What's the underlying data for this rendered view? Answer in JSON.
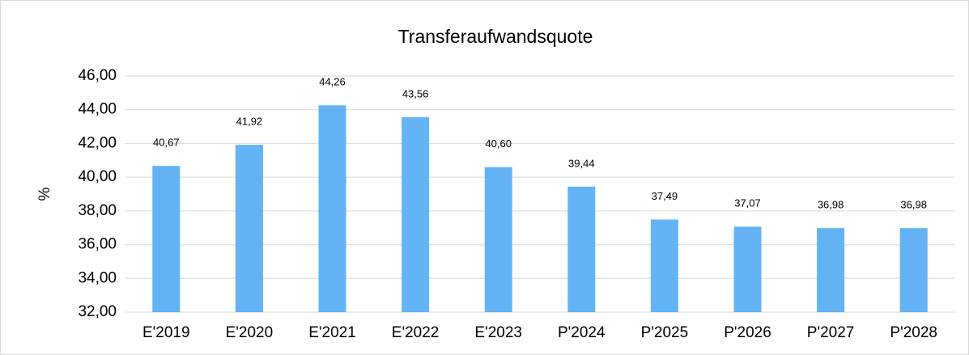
{
  "chart_data": {
    "type": "bar",
    "title": "Transferaufwandsquote",
    "y_label": "%",
    "categories": [
      "E'2019",
      "E'2020",
      "E'2021",
      "E'2022",
      "E'2023",
      "P'2024",
      "P'2025",
      "P'2026",
      "P'2027",
      "P'2028"
    ],
    "values": [
      40.67,
      41.92,
      44.26,
      43.56,
      40.6,
      39.44,
      37.49,
      37.07,
      36.98,
      36.98
    ],
    "value_labels": [
      "40,67",
      "41,92",
      "44,26",
      "43,56",
      "40,60",
      "39,44",
      "37,49",
      "37,07",
      "36,98",
      "36,98"
    ],
    "color": "#63b3f5",
    "ylim": [
      32,
      46
    ],
    "yticks": [
      {
        "value": 32,
        "label": "32,00"
      },
      {
        "value": 34,
        "label": "34,00"
      },
      {
        "value": 36,
        "label": "36,00"
      },
      {
        "value": 38,
        "label": "38,00"
      },
      {
        "value": 40,
        "label": "40,00"
      },
      {
        "value": 42,
        "label": "42,00"
      },
      {
        "value": 44,
        "label": "44,00"
      },
      {
        "value": 46,
        "label": "46,00"
      }
    ],
    "grid": true
  }
}
